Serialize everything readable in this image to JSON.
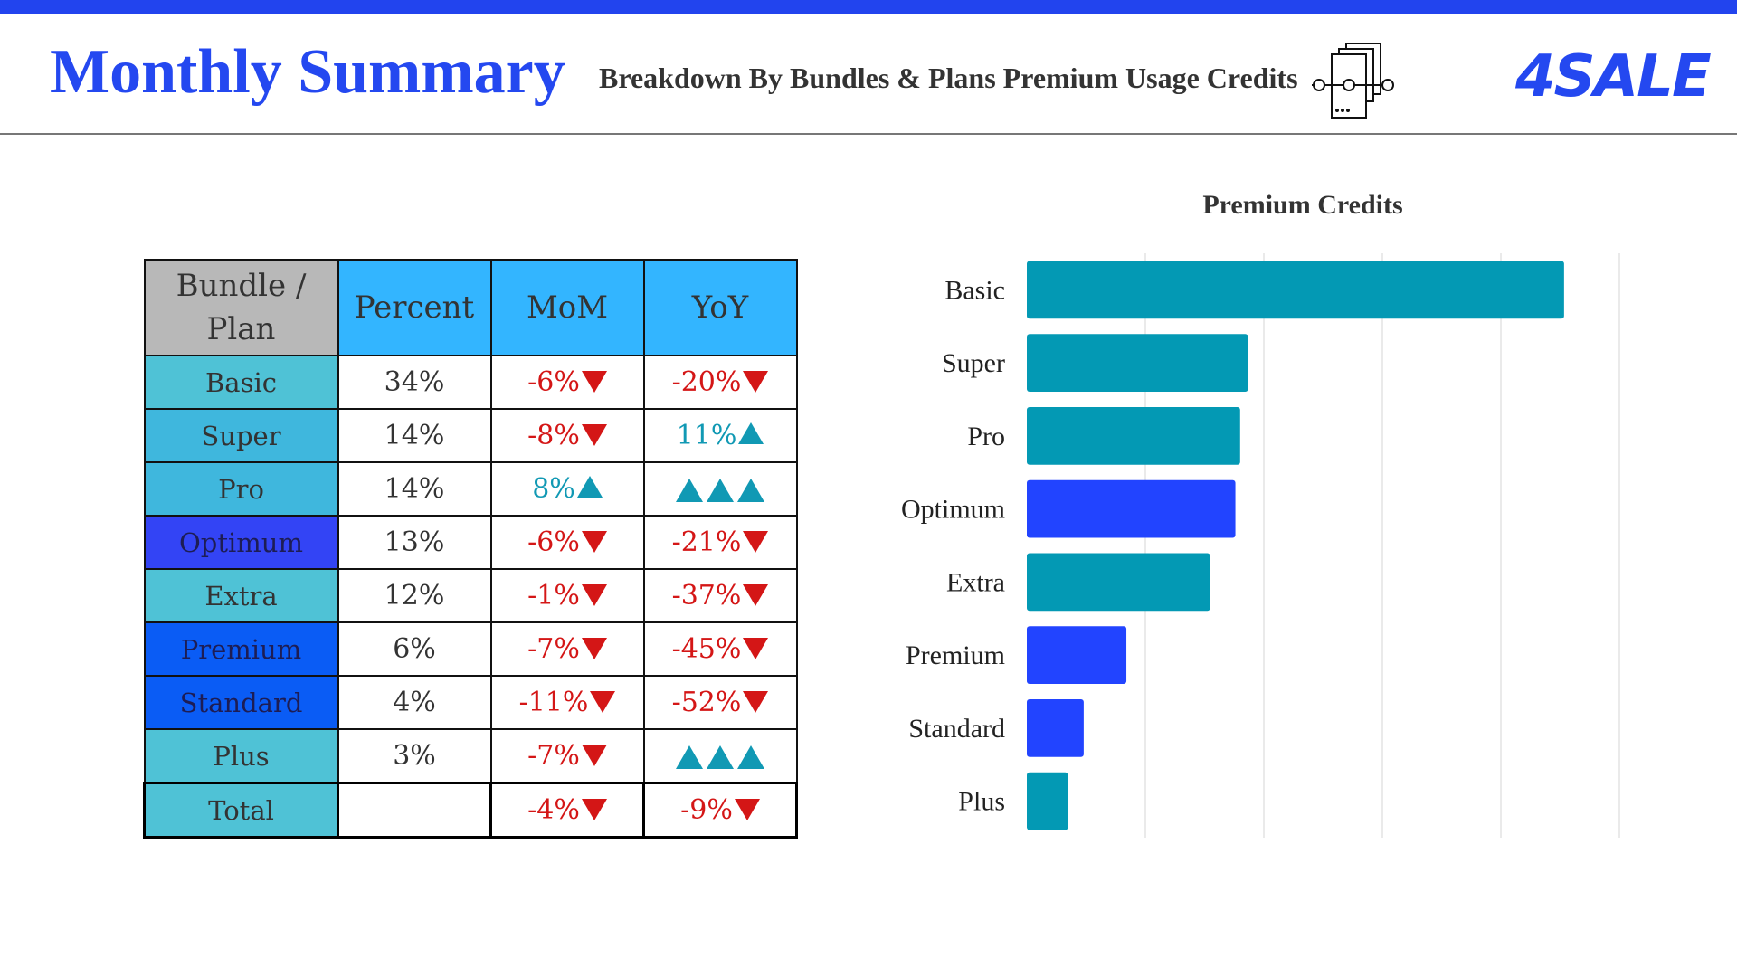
{
  "header": {
    "title": "Monthly Summary",
    "subtitle": "Breakdown By Bundles & Plans Premium Usage Credits",
    "logo_text": "4SALE",
    "icon": "documents-icon",
    "accent_color": "#2448f0"
  },
  "table": {
    "headers": [
      "Bundle / Plan",
      "Percent",
      "MoM",
      "YoY"
    ],
    "rows": [
      {
        "bundle": "Basic",
        "bundle_color": "#4fc2d6",
        "bundle_text_color": "#333333",
        "percent": "34%",
        "mom": "-6%",
        "mom_trend": "down",
        "yoy": "-20%",
        "yoy_trend": "down"
      },
      {
        "bundle": "Super",
        "bundle_color": "#3fb7dd",
        "bundle_text_color": "#333333",
        "percent": "14%",
        "mom": "-8%",
        "mom_trend": "down",
        "yoy": "11%",
        "yoy_trend": "up"
      },
      {
        "bundle": "Pro",
        "bundle_color": "#3fb7dd",
        "bundle_text_color": "#333333",
        "percent": "14%",
        "mom": "8%",
        "mom_trend": "up",
        "yoy": "",
        "yoy_trend": "triple-up"
      },
      {
        "bundle": "Optimum",
        "bundle_color": "#3344f5",
        "bundle_text_color": "#1d1d55",
        "percent": "13%",
        "mom": "-6%",
        "mom_trend": "down",
        "yoy": "-21%",
        "yoy_trend": "down"
      },
      {
        "bundle": "Extra",
        "bundle_color": "#4fc2d6",
        "bundle_text_color": "#333333",
        "percent": "12%",
        "mom": "-1%",
        "mom_trend": "down",
        "yoy": "-37%",
        "yoy_trend": "down"
      },
      {
        "bundle": "Premium",
        "bundle_color": "#0a5cf5",
        "bundle_text_color": "#1d1d55",
        "percent": "6%",
        "mom": "-7%",
        "mom_trend": "down",
        "yoy": "-45%",
        "yoy_trend": "down"
      },
      {
        "bundle": "Standard",
        "bundle_color": "#0a5cf5",
        "bundle_text_color": "#1d1d55",
        "percent": "4%",
        "mom": "-11%",
        "mom_trend": "down",
        "yoy": "-52%",
        "yoy_trend": "down"
      },
      {
        "bundle": "Plus",
        "bundle_color": "#4fc2d6",
        "bundle_text_color": "#333333",
        "percent": "3%",
        "mom": "-7%",
        "mom_trend": "down",
        "yoy": "",
        "yoy_trend": "triple-up"
      }
    ],
    "total": {
      "label": "Total",
      "percent": "",
      "mom": "-4%",
      "mom_trend": "down",
      "yoy": "-9%",
      "yoy_trend": "down"
    },
    "negative_color": "#d41616",
    "positive_color": "#1199b4"
  },
  "chart_data": {
    "type": "bar",
    "orientation": "horizontal",
    "title": "Premium Credits",
    "categories": [
      "Basic",
      "Super",
      "Pro",
      "Optimum",
      "Extra",
      "Premium",
      "Standard",
      "Plus"
    ],
    "values": [
      34,
      14,
      13.5,
      13.2,
      11.6,
      6.3,
      3.6,
      2.6
    ],
    "xlim": [
      0,
      37.5
    ],
    "x_tick_labels_shown": false,
    "grid": true,
    "legend": "none",
    "bar_colors": [
      "#0399b4",
      "#0399b4",
      "#0399b4",
      "#2244ff",
      "#0399b4",
      "#2244ff",
      "#2244ff",
      "#0399b4"
    ]
  }
}
